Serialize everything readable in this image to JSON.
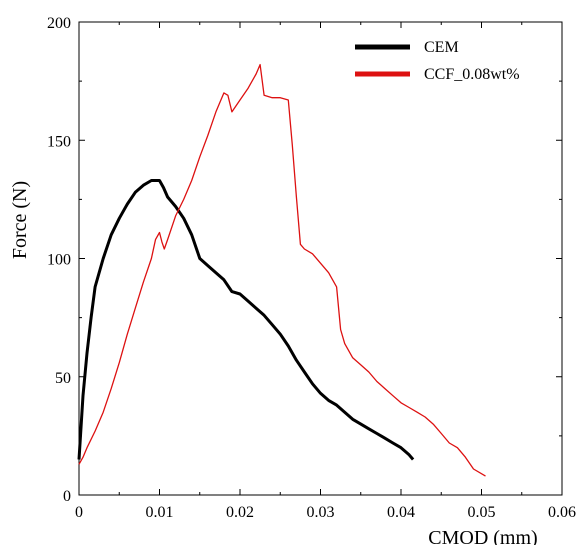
{
  "chart_data": {
    "type": "line",
    "title": "",
    "xlabel": "CMOD (mm)",
    "ylabel": "Force (N)",
    "xlim": [
      0,
      0.06
    ],
    "ylim": [
      0,
      200
    ],
    "x_ticks": [
      0,
      0.01,
      0.02,
      0.03,
      0.04,
      0.05,
      0.06
    ],
    "x_tick_labels": [
      "0",
      "0.01",
      "0.02",
      "0.03",
      "0.04",
      "0.05",
      "0.06"
    ],
    "y_ticks": [
      0,
      50,
      100,
      150,
      200
    ],
    "y_tick_labels": [
      "0",
      "50",
      "100",
      "150",
      "200"
    ],
    "grid": false,
    "legend_position": "top-right",
    "series": [
      {
        "name": "CEM",
        "color": "#000000",
        "x": [
          0,
          0.0005,
          0.001,
          0.0015,
          0.002,
          0.003,
          0.004,
          0.005,
          0.006,
          0.007,
          0.008,
          0.009,
          0.01,
          0.0105,
          0.011,
          0.012,
          0.013,
          0.014,
          0.015,
          0.016,
          0.017,
          0.018,
          0.019,
          0.02,
          0.021,
          0.022,
          0.023,
          0.024,
          0.025,
          0.026,
          0.027,
          0.028,
          0.029,
          0.03,
          0.031,
          0.032,
          0.033,
          0.034,
          0.035,
          0.036,
          0.037,
          0.038,
          0.039,
          0.04,
          0.041,
          0.0415
        ],
        "y": [
          15,
          42,
          60,
          75,
          88,
          100,
          110,
          117,
          123,
          128,
          131,
          133,
          133,
          130,
          126,
          122,
          117,
          110,
          100,
          97,
          94,
          91,
          86,
          85,
          82,
          79,
          76,
          72,
          68,
          63,
          57,
          52,
          47,
          43,
          40,
          38,
          35,
          32,
          30,
          28,
          26,
          24,
          22,
          20,
          17,
          15
        ]
      },
      {
        "name": "CCF_0.08wt%",
        "color": "#dd1111",
        "x": [
          0,
          0.0005,
          0.001,
          0.002,
          0.003,
          0.004,
          0.005,
          0.006,
          0.007,
          0.008,
          0.009,
          0.0095,
          0.01,
          0.0103,
          0.0106,
          0.011,
          0.012,
          0.013,
          0.014,
          0.015,
          0.016,
          0.017,
          0.018,
          0.0185,
          0.019,
          0.02,
          0.021,
          0.022,
          0.0225,
          0.023,
          0.024,
          0.025,
          0.026,
          0.0265,
          0.027,
          0.0275,
          0.028,
          0.029,
          0.03,
          0.031,
          0.032,
          0.0325,
          0.033,
          0.034,
          0.035,
          0.036,
          0.037,
          0.038,
          0.039,
          0.04,
          0.041,
          0.042,
          0.043,
          0.044,
          0.045,
          0.046,
          0.047,
          0.048,
          0.049,
          0.0505
        ],
        "y": [
          13,
          16,
          20,
          27,
          35,
          45,
          56,
          68,
          79,
          90,
          100,
          108,
          111,
          107,
          104,
          108,
          118,
          125,
          133,
          143,
          152,
          162,
          170,
          169,
          162,
          167,
          172,
          178,
          182,
          169,
          168,
          168,
          167,
          148,
          126,
          106,
          104,
          102,
          98,
          94,
          88,
          70,
          64,
          58,
          55,
          52,
          48,
          45,
          42,
          39,
          37,
          35,
          33,
          30,
          26,
          22,
          20,
          16,
          11,
          8
        ]
      }
    ]
  }
}
